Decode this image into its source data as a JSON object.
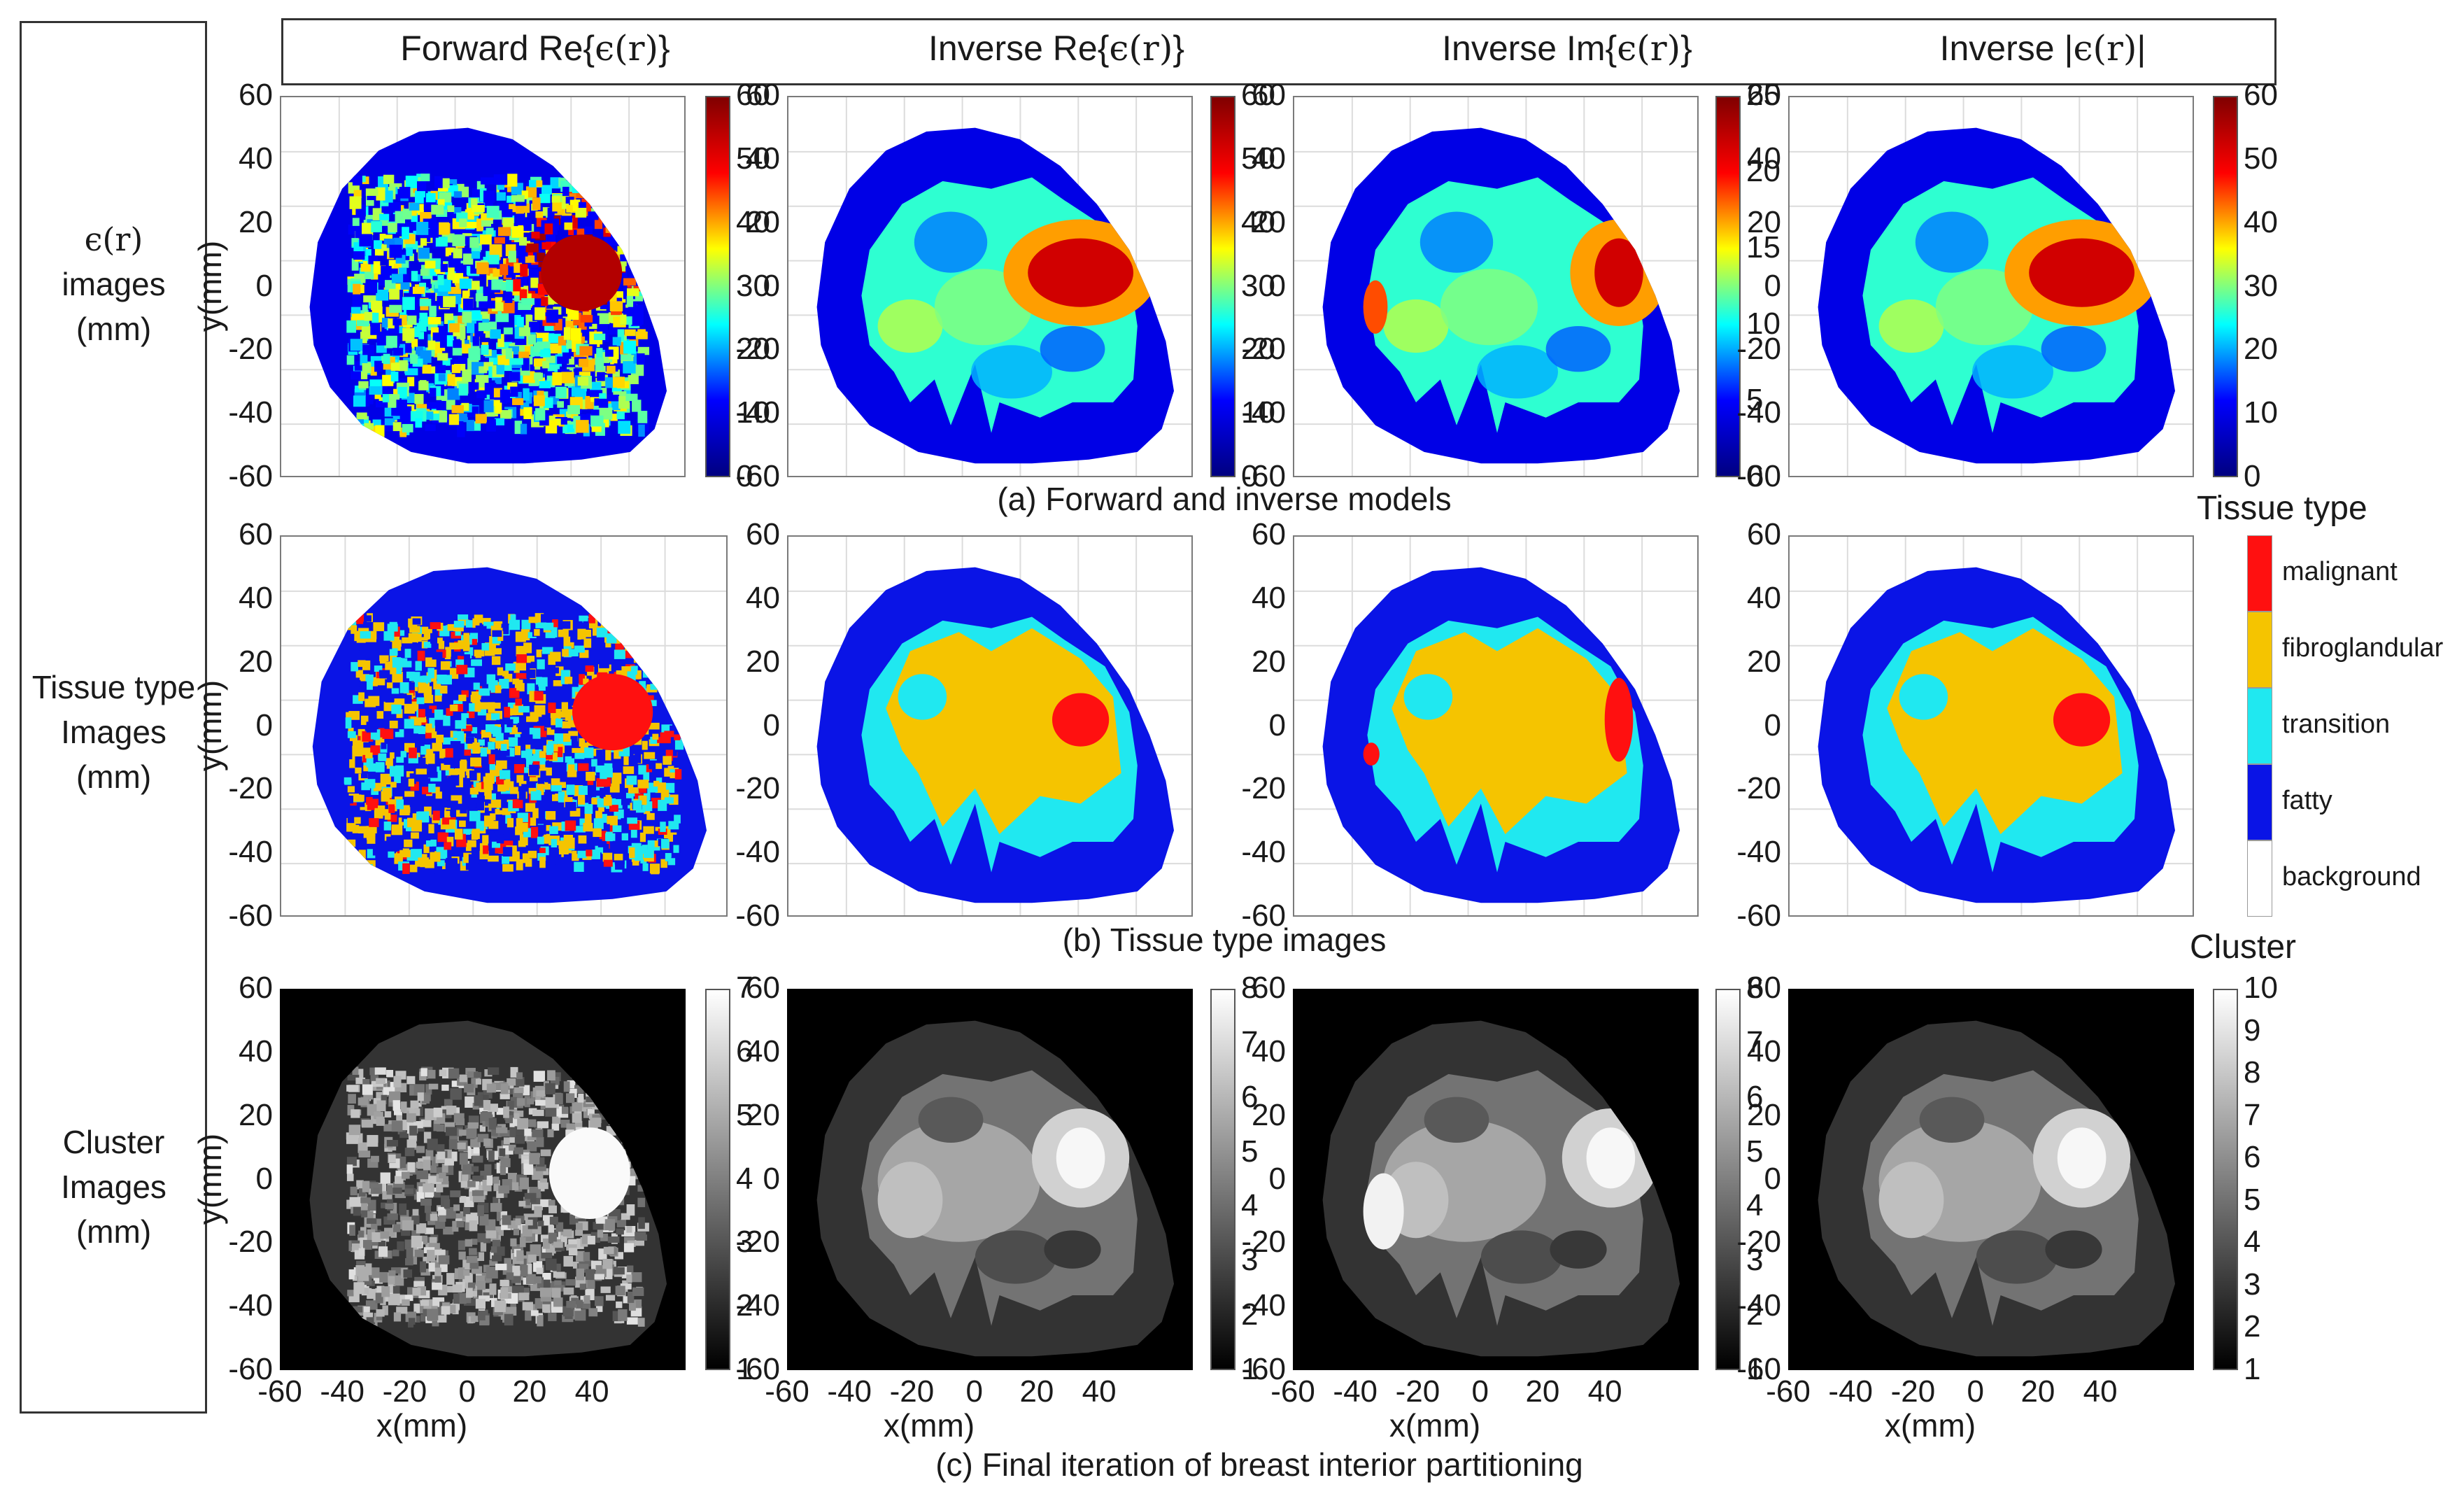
{
  "column_headers": [
    {
      "pre": "Forward Re{",
      "sym": "ϵ(r)",
      "post": "}"
    },
    {
      "pre": "Inverse Re{",
      "sym": "ϵ(r)",
      "post": "}"
    },
    {
      "pre": "Inverse Im{",
      "sym": "ϵ(r)",
      "post": "}"
    },
    {
      "pre": "Inverse |",
      "sym": "ϵ(r)",
      "post": "|"
    }
  ],
  "row_labels": [
    {
      "line1": "ϵ(r)",
      "line2": "images",
      "line3": "(mm)"
    },
    {
      "line1": "Tissue type",
      "line2": "Images",
      "line3": "(mm)"
    },
    {
      "line1": "Cluster",
      "line2": "Images",
      "line3": "(mm)"
    }
  ],
  "captions": {
    "a": "(a) Forward and inverse models",
    "b": "(b) Tissue type images",
    "c": "(c) Final iteration of breast interior partitioning"
  },
  "axes": {
    "y_ticks": [
      "60",
      "40",
      "20",
      "0",
      "-20",
      "-40",
      "-60"
    ],
    "x_ticks": [
      "-60",
      "-40",
      "-20",
      "0",
      "20",
      "40"
    ],
    "xlabel": "x(mm)",
    "ylabel": "y(mm)"
  },
  "colorbars_row1": [
    [
      "60",
      "50",
      "40",
      "30",
      "20",
      "10",
      "0"
    ],
    [
      "60",
      "50",
      "40",
      "30",
      "20",
      "10",
      "0"
    ],
    [
      "25",
      "20",
      "15",
      "10",
      "5",
      "0"
    ],
    [
      "60",
      "50",
      "40",
      "30",
      "20",
      "10",
      "0"
    ]
  ],
  "colorbars_row3": [
    [
      "7",
      "6",
      "5",
      "4",
      "3",
      "2",
      "1"
    ],
    [
      "8",
      "7",
      "6",
      "5",
      "4",
      "3",
      "2",
      "1"
    ],
    [
      "8",
      "7",
      "6",
      "5",
      "4",
      "3",
      "2",
      "1"
    ],
    [
      "10",
      "9",
      "8",
      "7",
      "6",
      "5",
      "4",
      "3",
      "2",
      "1"
    ]
  ],
  "tissue_legend": {
    "title": "Tissue type",
    "items": [
      {
        "label": "malignant",
        "color": "#ff1010"
      },
      {
        "label": "fibroglandular",
        "color": "#f5c400"
      },
      {
        "label": "transition",
        "color": "#20e8f0"
      },
      {
        "label": "fatty",
        "color": "#0a14e6"
      },
      {
        "label": "background",
        "color": "#ffffff"
      }
    ]
  },
  "cluster_legend_title": "Cluster",
  "colors": {
    "jet_low": "#00007f",
    "jet_high": "#7f0000",
    "fatty": "#0a14e6",
    "fibroglandular": "#f5c400",
    "transition": "#20e8f0",
    "malignant": "#ff1010"
  }
}
